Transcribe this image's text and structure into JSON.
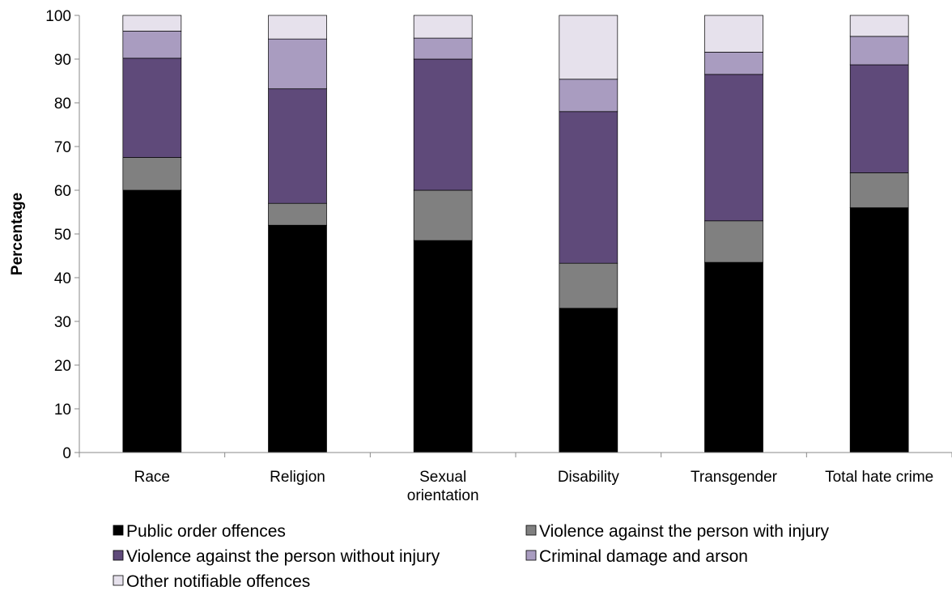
{
  "chart_data": {
    "type": "bar",
    "stacked": true,
    "categories": [
      "Race",
      "Religion",
      "Sexual orientation",
      "Disability",
      "Transgender",
      "Total hate crime"
    ],
    "category_lines": [
      [
        "Race"
      ],
      [
        "Religion"
      ],
      [
        "Sexual",
        "orientation"
      ],
      [
        "Disability"
      ],
      [
        "Transgender"
      ],
      [
        "Total hate crime"
      ]
    ],
    "series": [
      {
        "name": "Public order offences",
        "color": "#000000",
        "values": [
          60,
          52,
          48.5,
          33,
          43.5,
          56
        ]
      },
      {
        "name": "Violence against the person with injury",
        "color": "#808080",
        "values": [
          7.5,
          5,
          11.5,
          10.3,
          9.5,
          8
        ]
      },
      {
        "name": "Violence against the person without injury",
        "color": "#5f4a7a",
        "values": [
          22.7,
          26.2,
          30,
          34.7,
          33.5,
          24.7
        ]
      },
      {
        "name": "Criminal damage and arson",
        "color": "#a99cc0",
        "values": [
          6.2,
          11.4,
          4.8,
          7.4,
          5.1,
          6.5
        ]
      },
      {
        "name": "Other notifiable offences",
        "color": "#e6e1ec",
        "values": [
          3.6,
          5.4,
          5.2,
          14.6,
          8.4,
          4.8
        ]
      }
    ],
    "ylabel": "Percentage",
    "xlabel": "",
    "ylim": [
      0,
      100
    ],
    "yticks": [
      0,
      10,
      20,
      30,
      40,
      50,
      60,
      70,
      80,
      90,
      100
    ],
    "grid": false,
    "legend_position": "bottom"
  }
}
